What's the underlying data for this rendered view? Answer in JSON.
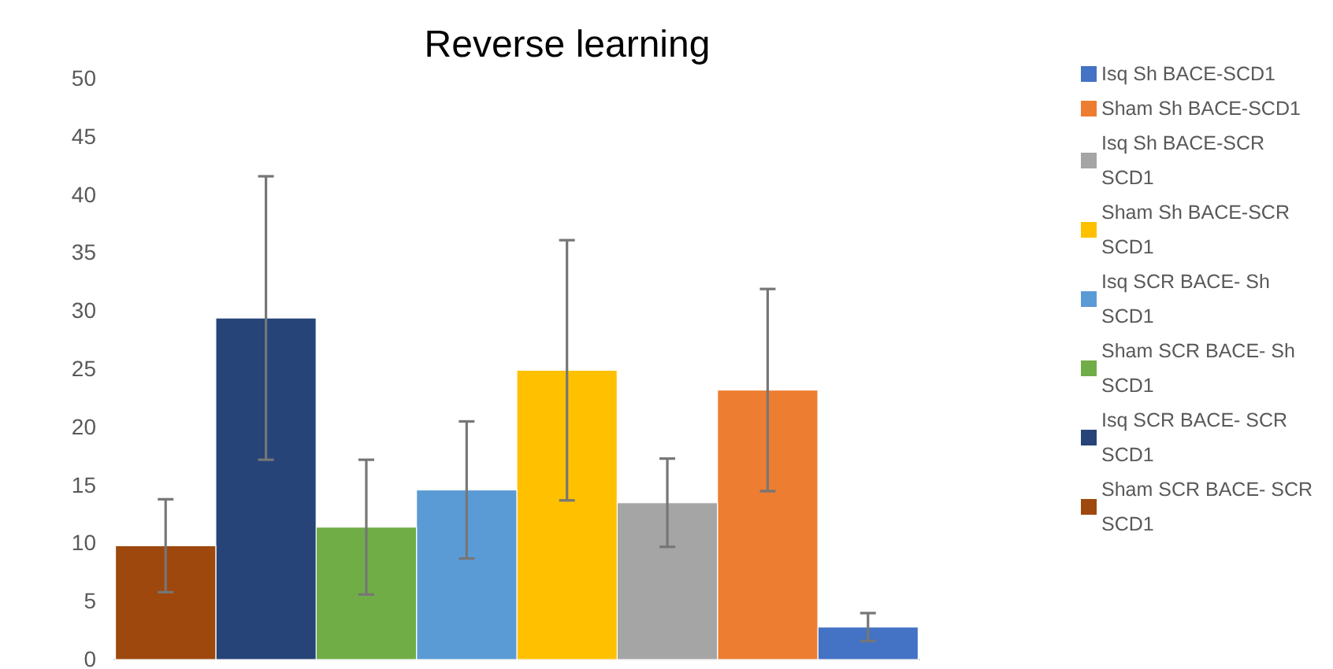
{
  "chart_data": {
    "type": "bar",
    "title": "Reverse learning",
    "categories": [
      null,
      null,
      null,
      null,
      null,
      null,
      null,
      null
    ],
    "ylim": [
      0,
      50
    ],
    "yticks": [
      0,
      5,
      10,
      15,
      20,
      25,
      30,
      35,
      40,
      45,
      50
    ],
    "grid": false,
    "legend": "right",
    "series": [
      {
        "name": "Isq Sh BACE-SCD1",
        "color": "#4472c4",
        "values": [
          null,
          null,
          null,
          null,
          null,
          null,
          null,
          2.8
        ],
        "errors": [
          null,
          null,
          null,
          null,
          null,
          null,
          null,
          1.2
        ]
      },
      {
        "name": "Sham Sh BACE-SCD1",
        "color": "#ed7d31",
        "values": [
          null,
          null,
          null,
          null,
          null,
          null,
          23.2,
          null
        ],
        "errors": [
          null,
          null,
          null,
          null,
          null,
          null,
          8.7,
          null
        ]
      },
      {
        "name": "Isq Sh BACE-SCR SCD1",
        "color": "#a5a5a5",
        "values": [
          null,
          null,
          null,
          null,
          null,
          13.5,
          null,
          null
        ],
        "errors": [
          null,
          null,
          null,
          null,
          null,
          3.8,
          null,
          null
        ]
      },
      {
        "name": "Sham Sh BACE-SCR SCD1",
        "color": "#ffc000",
        "values": [
          null,
          null,
          null,
          null,
          24.9,
          null,
          null,
          null
        ],
        "errors": [
          null,
          null,
          null,
          null,
          11.2,
          null,
          null,
          null
        ]
      },
      {
        "name": "Isq SCR BACE- Sh SCD1",
        "color": "#5b9bd5",
        "values": [
          null,
          null,
          null,
          14.6,
          null,
          null,
          null,
          null
        ],
        "errors": [
          null,
          null,
          null,
          5.9,
          null,
          null,
          null,
          null
        ]
      },
      {
        "name": "Sham SCR BACE- Sh SCD1",
        "color": "#70ad47",
        "values": [
          null,
          null,
          11.4,
          null,
          null,
          null,
          null,
          null
        ],
        "errors": [
          null,
          null,
          5.8,
          null,
          null,
          null,
          null,
          null
        ]
      },
      {
        "name": "Isq SCR BACE- SCR SCD1",
        "color": "#264478",
        "values": [
          null,
          29.4,
          null,
          null,
          null,
          null,
          null,
          null
        ],
        "errors": [
          null,
          12.2,
          null,
          null,
          null,
          null,
          null,
          null
        ]
      },
      {
        "name": "Sham SCR BACE- SCR SCD1",
        "color": "#9e480e",
        "values": [
          9.8,
          null,
          null,
          null,
          null,
          null,
          null,
          null
        ],
        "errors": [
          4.0,
          null,
          null,
          null,
          null,
          null,
          null,
          null
        ]
      }
    ]
  }
}
